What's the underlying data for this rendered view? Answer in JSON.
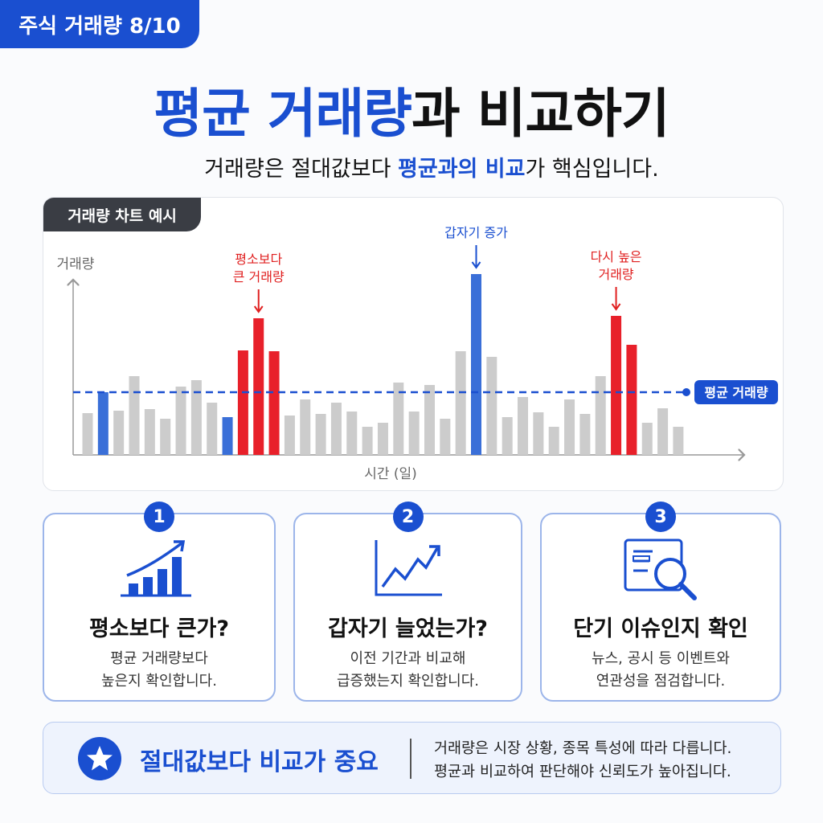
{
  "badge": "주식 거래량 8/10",
  "title": {
    "highlight": "평균 거래량",
    "rest": "과 비교하기"
  },
  "subtitle": {
    "before": "거래량은 절대값보다 ",
    "highlight": "평균과의 비교",
    "after": "가 핵심입니다."
  },
  "chart_data": {
    "type": "bar",
    "tab": "거래량 차트 예시",
    "y_label": "거래량",
    "x_label": "시간 (일)",
    "values": [
      52,
      78,
      55,
      98,
      57,
      45,
      85,
      93,
      65,
      47,
      130,
      170,
      129,
      49,
      69,
      51,
      65,
      54,
      35,
      40,
      90,
      54,
      87,
      45,
      129,
      225,
      122,
      47,
      72,
      53,
      35,
      69,
      51,
      98,
      173,
      137,
      40,
      58,
      35
    ],
    "colors": [
      "#cccccc",
      "#3a6fd8",
      "#cccccc",
      "#cccccc",
      "#cccccc",
      "#cccccc",
      "#cccccc",
      "#cccccc",
      "#cccccc",
      "#3a6fd8",
      "#e8202a",
      "#e8202a",
      "#e8202a",
      "#cccccc",
      "#cccccc",
      "#cccccc",
      "#cccccc",
      "#cccccc",
      "#cccccc",
      "#cccccc",
      "#cccccc",
      "#cccccc",
      "#cccccc",
      "#cccccc",
      "#cccccc",
      "#3a6fd8",
      "#cccccc",
      "#cccccc",
      "#cccccc",
      "#cccccc",
      "#cccccc",
      "#cccccc",
      "#cccccc",
      "#cccccc",
      "#e8202a",
      "#e8202a",
      "#cccccc",
      "#cccccc",
      "#cccccc"
    ],
    "ylim": [
      0,
      230
    ],
    "average": {
      "label": "평균 거래량",
      "value": 78,
      "color": "#1a4fd0"
    },
    "annotations": [
      {
        "lines": [
          "평소보다",
          "큰 거래량"
        ],
        "bar": 11,
        "color": "#e02020"
      },
      {
        "lines": [
          "갑자기 증가"
        ],
        "bar": 25,
        "color": "#1a4fd0"
      },
      {
        "lines": [
          "다시 높은",
          "거래량"
        ],
        "bar": 34,
        "color": "#e02020"
      }
    ]
  },
  "cards": [
    {
      "number": "1",
      "title": "평소보다 큰가?",
      "lines": [
        "평균 거래량보다",
        "높은지 확인합니다."
      ]
    },
    {
      "number": "2",
      "title": "갑자기 늘었는가?",
      "lines": [
        "이전 기간과 비교해",
        "급증했는지 확인합니다."
      ]
    },
    {
      "number": "3",
      "title": "단기 이슈인지 확인",
      "lines": [
        "뉴스, 공시 등 이벤트와",
        "연관성을 점검합니다."
      ]
    }
  ],
  "footer": {
    "title": "절대값보다 비교가 중요",
    "lines": [
      "거래량은 시장 상황, 종목 특성에 따라 다릅니다.",
      "평균과 비교하여 판단해야 신뢰도가 높아집니다."
    ]
  }
}
